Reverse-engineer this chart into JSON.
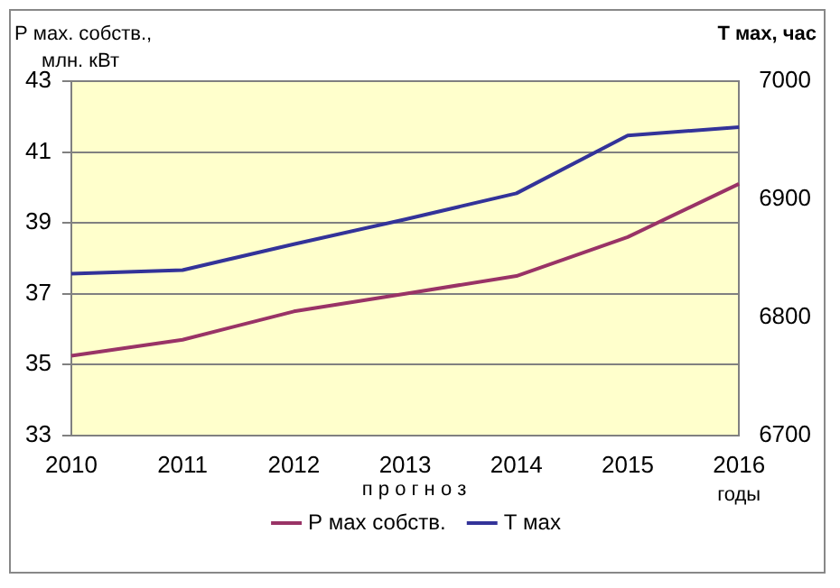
{
  "chart_data": {
    "type": "line",
    "ylabel": "Р мах. собств., млн. кВт",
    "y2label": "Т мах, час",
    "categories": [
      "2010",
      "2011",
      "2012",
      "2013",
      "2014",
      "2015",
      "2016"
    ],
    "series": [
      {
        "name": "Р мах собств.",
        "color": "#993366",
        "values": [
          35.25,
          35.7,
          36.5,
          37.0,
          37.5,
          38.6,
          40.1
        ]
      },
      {
        "name": "Т мах",
        "color": "#333399",
        "axis": "y2",
        "values": [
          6837,
          6840,
          6862,
          6883,
          6905,
          6954,
          6961
        ]
      }
    ],
    "ylim": [
      33,
      43
    ],
    "yticks": [
      33,
      35,
      37,
      39,
      41,
      43
    ],
    "y2lim": [
      6700,
      7000
    ],
    "y2ticks": [
      6700,
      6800,
      6900,
      7000
    ],
    "grid": "y",
    "legend": "bottom",
    "marker": "none",
    "line_style": "solid",
    "annotations": [
      "п р о г н о з",
      "годы"
    ]
  }
}
